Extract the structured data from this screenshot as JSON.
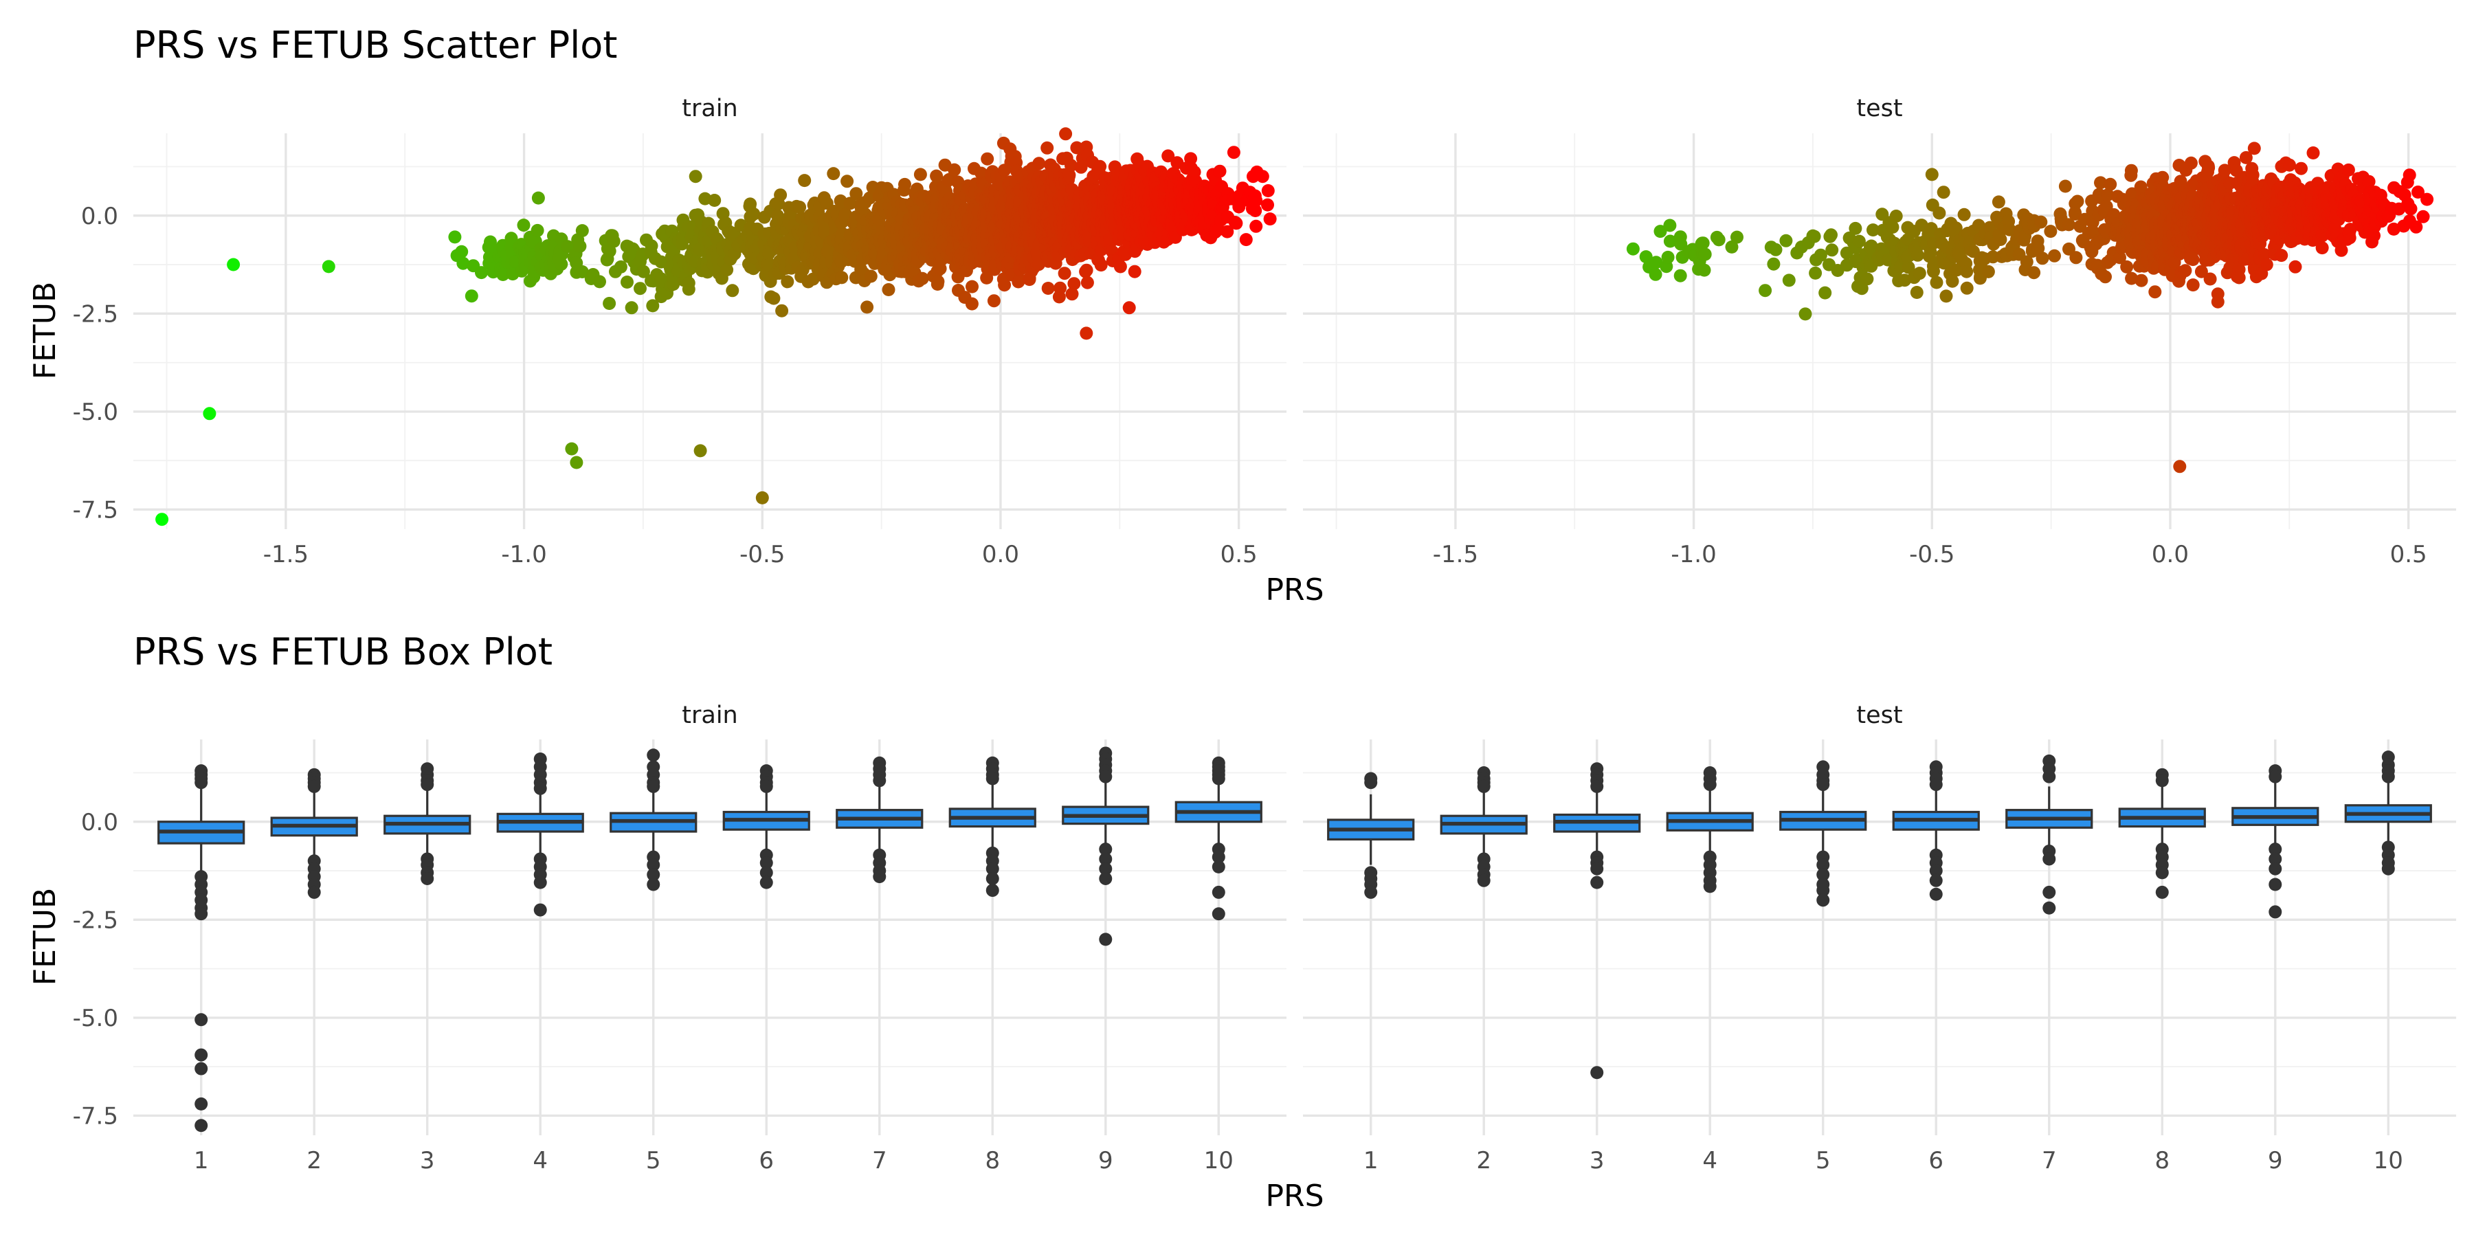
{
  "colors": {
    "low": "#00ff00",
    "high": "#ff0000",
    "box_fill": "#2b90ea",
    "box_line": "#333333"
  },
  "chart_data": [
    {
      "type": "scatter",
      "title": "PRS vs FETUB Scatter Plot",
      "xlabel": "PRS",
      "ylabel": "FETUB",
      "xlim": [
        -1.82,
        0.6
      ],
      "ylim": [
        -8.0,
        2.1
      ],
      "x_ticks": [
        -1.5,
        -1.0,
        -0.5,
        0.0,
        0.5
      ],
      "x_tick_labels": [
        "-1.5",
        "-1.0",
        "-0.5",
        "0.0",
        "0.5"
      ],
      "y_ticks": [
        0.0,
        -2.5,
        -5.0,
        -7.5
      ],
      "y_tick_labels": [
        "0.0",
        "-2.5",
        "-5.0",
        "-7.5"
      ],
      "color_scale": {
        "variable": "PRS",
        "low": "#00ff00",
        "high": "#ff0000",
        "range": [
          -1.76,
          0.53
        ]
      },
      "grid": true,
      "legend": "none",
      "panels": [
        {
          "label": "train",
          "points": [
            [
              -1.76,
              -7.75
            ],
            [
              -1.66,
              -5.05
            ],
            [
              -1.61,
              -1.25
            ],
            [
              -1.41,
              -1.3
            ],
            [
              -1.11,
              -2.05
            ],
            [
              -0.97,
              0.45
            ],
            [
              -0.9,
              -5.95
            ],
            [
              -0.89,
              -6.3
            ],
            [
              -0.63,
              -6.0
            ],
            [
              -0.5,
              -7.2
            ],
            [
              -0.64,
              1.0
            ],
            [
              -0.06,
              -2.25
            ],
            [
              0.18,
              -3.0
            ],
            [
              0.27,
              -2.35
            ],
            [
              0.15,
              -2.0
            ],
            [
              0.02,
              1.7
            ],
            [
              0.18,
              1.75
            ],
            [
              0.53,
              1.0
            ],
            [
              0.55,
              1.0
            ],
            [
              -0.73,
              -2.3
            ]
          ],
          "clusters": [
            {
              "cx": -1.0,
              "cy": -1.0,
              "sx": 0.06,
              "sy": 0.3,
              "n": 100
            },
            {
              "cx": -0.6,
              "cy": -0.9,
              "sx": 0.15,
              "sy": 0.5,
              "n": 250
            },
            {
              "cx": -0.25,
              "cy": -0.5,
              "sx": 0.15,
              "sy": 0.55,
              "n": 450
            },
            {
              "cx": 0.05,
              "cy": -0.15,
              "sx": 0.13,
              "sy": 0.65,
              "n": 1100
            },
            {
              "cx": 0.3,
              "cy": 0.2,
              "sx": 0.1,
              "sy": 0.45,
              "n": 650
            }
          ]
        },
        {
          "label": "test",
          "points": [
            [
              -1.1,
              -1.05
            ],
            [
              -1.07,
              -0.4
            ],
            [
              -1.05,
              -0.25
            ],
            [
              -1.08,
              -1.5
            ],
            [
              -0.92,
              -0.8
            ],
            [
              -0.8,
              -1.65
            ],
            [
              -0.5,
              1.05
            ],
            [
              -0.22,
              0.75
            ],
            [
              0.02,
              -6.4
            ],
            [
              0.1,
              -2.2
            ],
            [
              0.3,
              1.6
            ],
            [
              0.52,
              0.6
            ],
            [
              0.1,
              -2.0
            ]
          ],
          "clusters": [
            {
              "cx": -1.0,
              "cy": -0.9,
              "sx": 0.04,
              "sy": 0.28,
              "n": 28
            },
            {
              "cx": -0.5,
              "cy": -0.8,
              "sx": 0.16,
              "sy": 0.5,
              "n": 220
            },
            {
              "cx": 0.05,
              "cy": -0.2,
              "sx": 0.1,
              "sy": 0.6,
              "n": 700
            },
            {
              "cx": 0.3,
              "cy": 0.15,
              "sx": 0.09,
              "sy": 0.42,
              "n": 380
            }
          ]
        }
      ]
    },
    {
      "type": "box",
      "title": "PRS vs FETUB Box Plot",
      "xlabel": "PRS",
      "ylabel": "FETUB",
      "categories": [
        "1",
        "2",
        "3",
        "4",
        "5",
        "6",
        "7",
        "8",
        "9",
        "10"
      ],
      "ylim": [
        -8.0,
        2.1
      ],
      "y_ticks": [
        0.0,
        -2.5,
        -5.0,
        -7.5
      ],
      "y_tick_labels": [
        "0.0",
        "-2.5",
        "-5.0",
        "-7.5"
      ],
      "grid": true,
      "panels": [
        {
          "label": "train",
          "boxes": [
            {
              "q1": -0.55,
              "median": -0.25,
              "q3": 0.0,
              "lo": -1.3,
              "hi": 0.9,
              "out": [
                1.3,
                1.2,
                1.1,
                1.0,
                -1.4,
                -1.6,
                -1.8,
                -2.0,
                -2.2,
                -2.35,
                -5.05,
                -5.95,
                -6.3,
                -7.2,
                -7.75
              ]
            },
            {
              "q1": -0.35,
              "median": -0.1,
              "q3": 0.1,
              "lo": -0.95,
              "hi": 0.8,
              "out": [
                1.2,
                1.1,
                1.0,
                0.9,
                -1.0,
                -1.2,
                -1.4,
                -1.6,
                -1.8
              ]
            },
            {
              "q1": -0.3,
              "median": -0.05,
              "q3": 0.15,
              "lo": -0.85,
              "hi": 0.85,
              "out": [
                1.35,
                1.2,
                1.05,
                0.95,
                -0.95,
                -1.1,
                -1.3,
                -1.45
              ]
            },
            {
              "q1": -0.25,
              "median": 0.0,
              "q3": 0.2,
              "lo": -0.8,
              "hi": 0.75,
              "out": [
                1.6,
                1.4,
                1.2,
                1.0,
                0.85,
                -0.95,
                -1.15,
                -1.35,
                -1.55,
                -2.25
              ]
            },
            {
              "q1": -0.25,
              "median": 0.02,
              "q3": 0.22,
              "lo": -0.8,
              "hi": 0.8,
              "out": [
                1.7,
                1.4,
                1.2,
                1.0,
                0.9,
                -0.9,
                -1.1,
                -1.35,
                -1.6
              ]
            },
            {
              "q1": -0.2,
              "median": 0.05,
              "q3": 0.25,
              "lo": -0.75,
              "hi": 0.85,
              "out": [
                1.3,
                1.15,
                1.0,
                0.9,
                -0.85,
                -1.05,
                -1.3,
                -1.55
              ]
            },
            {
              "q1": -0.15,
              "median": 0.08,
              "q3": 0.3,
              "lo": -0.75,
              "hi": 0.95,
              "out": [
                1.5,
                1.35,
                1.2,
                1.05,
                -0.85,
                -1.05,
                -1.25,
                -1.4
              ]
            },
            {
              "q1": -0.12,
              "median": 0.1,
              "q3": 0.33,
              "lo": -0.7,
              "hi": 1.0,
              "out": [
                1.5,
                1.35,
                1.2,
                1.1,
                -0.8,
                -1.0,
                -1.2,
                -1.45,
                -1.75
              ]
            },
            {
              "q1": -0.05,
              "median": 0.15,
              "q3": 0.38,
              "lo": -0.6,
              "hi": 1.05,
              "out": [
                1.75,
                1.6,
                1.45,
                1.3,
                1.15,
                -0.7,
                -0.95,
                -1.2,
                -1.45,
                -3.0
              ]
            },
            {
              "q1": 0.0,
              "median": 0.25,
              "q3": 0.5,
              "lo": -0.55,
              "hi": 1.0,
              "out": [
                1.5,
                1.4,
                1.3,
                1.2,
                1.1,
                -0.7,
                -0.9,
                -1.15,
                -1.8,
                -2.35
              ]
            }
          ]
        },
        {
          "label": "test",
          "boxes": [
            {
              "q1": -0.45,
              "median": -0.2,
              "q3": 0.05,
              "lo": -1.1,
              "hi": 0.7,
              "out": [
                1.1,
                1.0,
                -1.3,
                -1.45,
                -1.6,
                -1.8
              ]
            },
            {
              "q1": -0.3,
              "median": -0.05,
              "q3": 0.15,
              "lo": -0.9,
              "hi": 0.75,
              "out": [
                1.25,
                1.1,
                1.0,
                0.9,
                -0.95,
                -1.15,
                -1.35,
                -1.5
              ]
            },
            {
              "q1": -0.25,
              "median": 0.0,
              "q3": 0.18,
              "lo": -0.8,
              "hi": 0.75,
              "out": [
                1.35,
                1.2,
                1.05,
                0.9,
                -0.9,
                -1.05,
                -1.2,
                -1.55,
                -6.4
              ]
            },
            {
              "q1": -0.22,
              "median": 0.02,
              "q3": 0.22,
              "lo": -0.8,
              "hi": 0.8,
              "out": [
                1.25,
                1.1,
                0.95,
                -0.9,
                -1.1,
                -1.3,
                -1.5,
                -1.65
              ]
            },
            {
              "q1": -0.2,
              "median": 0.05,
              "q3": 0.25,
              "lo": -0.8,
              "hi": 0.85,
              "out": [
                1.4,
                1.2,
                1.05,
                0.95,
                -0.9,
                -1.1,
                -1.35,
                -1.6,
                -1.75,
                -2.0
              ]
            },
            {
              "q1": -0.2,
              "median": 0.05,
              "q3": 0.25,
              "lo": -0.75,
              "hi": 0.85,
              "out": [
                1.4,
                1.25,
                1.1,
                0.95,
                -0.85,
                -1.05,
                -1.25,
                -1.5,
                -1.85
              ]
            },
            {
              "q1": -0.15,
              "median": 0.08,
              "q3": 0.3,
              "lo": -0.7,
              "hi": 0.9,
              "out": [
                1.55,
                1.35,
                1.15,
                -0.75,
                -0.95,
                -1.8,
                -2.2
              ]
            },
            {
              "q1": -0.12,
              "median": 0.1,
              "q3": 0.33,
              "lo": -0.65,
              "hi": 0.95,
              "out": [
                1.2,
                1.05,
                -0.7,
                -0.9,
                -1.1,
                -1.3,
                -1.8
              ]
            },
            {
              "q1": -0.08,
              "median": 0.12,
              "q3": 0.35,
              "lo": -0.6,
              "hi": 1.0,
              "out": [
                1.3,
                1.15,
                -0.7,
                -0.95,
                -1.2,
                -1.6,
                -2.3
              ]
            },
            {
              "q1": 0.0,
              "median": 0.2,
              "q3": 0.42,
              "lo": -0.55,
              "hi": 1.05,
              "out": [
                1.65,
                1.45,
                1.3,
                1.15,
                -0.65,
                -0.85,
                -1.05,
                -1.2
              ]
            }
          ]
        }
      ]
    }
  ]
}
